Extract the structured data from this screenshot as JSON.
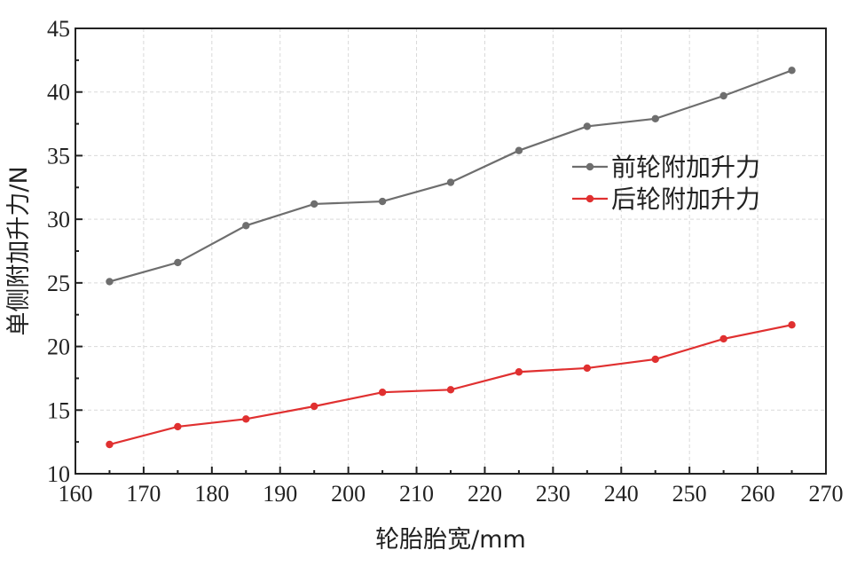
{
  "chart_data": {
    "type": "line",
    "title": "",
    "xlabel": "轮胎胎宽/mm",
    "ylabel": "单侧附加升力/N",
    "xlim": [
      160,
      270
    ],
    "ylim": [
      10,
      45
    ],
    "xticks": [
      160,
      170,
      180,
      190,
      200,
      210,
      220,
      230,
      240,
      250,
      260,
      270
    ],
    "yticks": [
      10,
      15,
      20,
      25,
      30,
      35,
      40,
      45
    ],
    "grid": true,
    "legend_position": "right-middle",
    "x": [
      165,
      175,
      185,
      195,
      205,
      215,
      225,
      235,
      245,
      255,
      265
    ],
    "series": [
      {
        "name": "前轮附加升力",
        "color": "#6e6e6e",
        "values": [
          25.1,
          26.6,
          29.5,
          31.2,
          31.4,
          32.9,
          35.4,
          37.3,
          37.9,
          39.7,
          41.7
        ]
      },
      {
        "name": "后轮附加升力",
        "color": "#e03030",
        "values": [
          12.3,
          13.7,
          14.3,
          15.3,
          16.4,
          16.6,
          18.0,
          18.3,
          19.0,
          20.6,
          21.7
        ]
      }
    ]
  }
}
